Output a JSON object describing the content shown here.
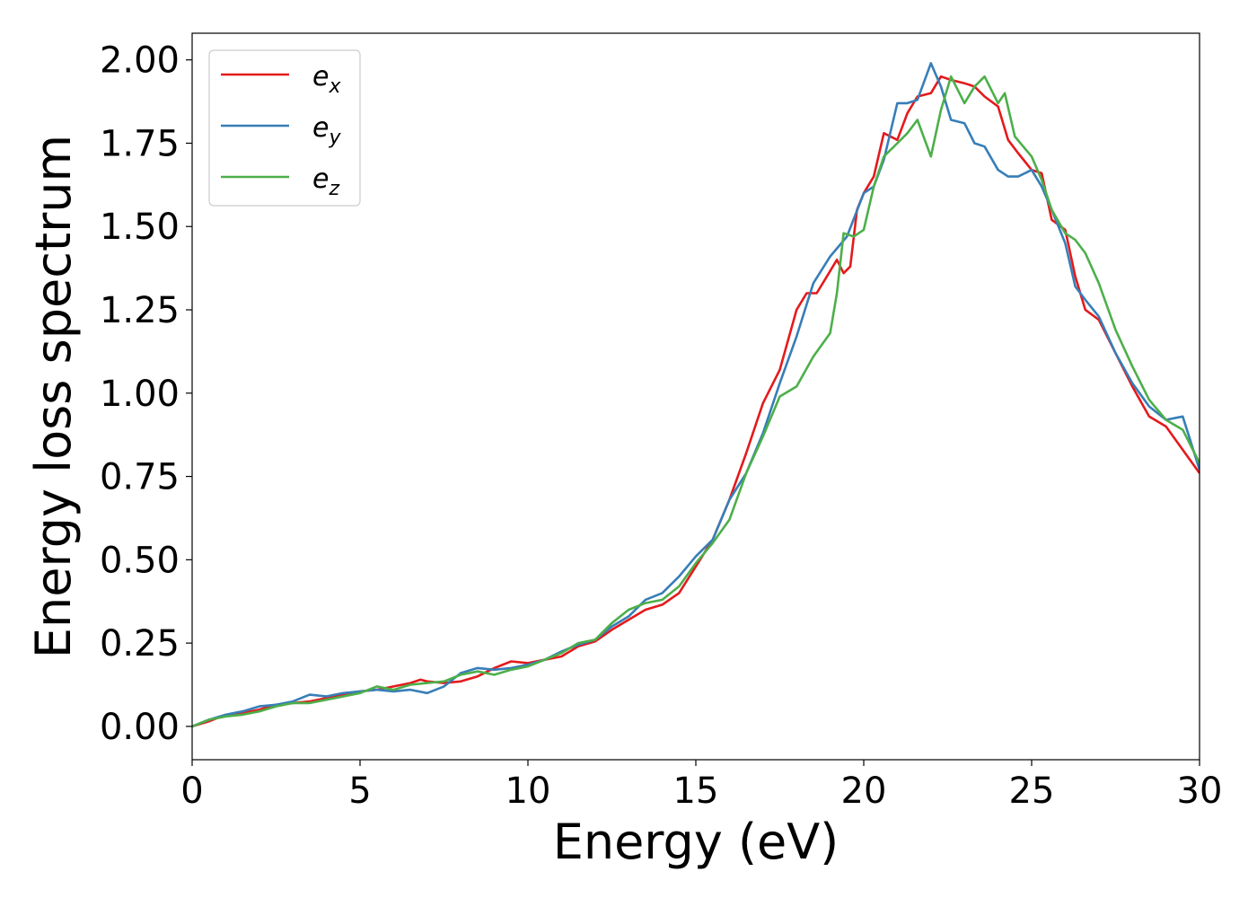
{
  "chart_data": {
    "type": "line",
    "xlabel": "Energy (eV)",
    "ylabel": "Energy loss spectrum",
    "xlim": [
      0,
      30
    ],
    "ylim": [
      -0.1,
      2.08
    ],
    "x_ticks": [
      0,
      5,
      10,
      15,
      20,
      25,
      30
    ],
    "x_tick_labels": [
      "0",
      "5",
      "10",
      "15",
      "20",
      "25",
      "30"
    ],
    "y_ticks": [
      0.0,
      0.25,
      0.5,
      0.75,
      1.0,
      1.25,
      1.5,
      1.75,
      2.0
    ],
    "y_tick_labels": [
      "0.00",
      "0.25",
      "0.50",
      "0.75",
      "1.00",
      "1.25",
      "1.50",
      "1.75",
      "2.00"
    ],
    "grid": false,
    "legend_position": "top-left",
    "series": [
      {
        "name": "e",
        "subscript": "x",
        "color": "#e41a1c",
        "x": [
          0,
          0.5,
          1.0,
          1.5,
          2.0,
          2.5,
          3.0,
          3.5,
          4.0,
          4.5,
          5.0,
          5.5,
          6.0,
          6.5,
          6.8,
          7.0,
          7.5,
          8.0,
          8.5,
          9.0,
          9.5,
          10.0,
          10.5,
          11.0,
          11.5,
          12.0,
          12.5,
          13.0,
          13.5,
          14.0,
          14.5,
          15.0,
          15.5,
          16.0,
          16.5,
          17.0,
          17.5,
          18.0,
          18.3,
          18.6,
          18.9,
          19.2,
          19.4,
          19.6,
          19.8,
          20.0,
          20.3,
          20.6,
          21.0,
          21.3,
          21.6,
          22.0,
          22.3,
          22.6,
          23.0,
          23.3,
          23.6,
          24.0,
          24.3,
          24.6,
          25.0,
          25.3,
          25.6,
          26.0,
          26.3,
          26.6,
          27.0,
          27.5,
          28.0,
          28.5,
          29.0,
          29.5,
          30.0
        ],
        "y": [
          0.0,
          0.015,
          0.035,
          0.04,
          0.05,
          0.065,
          0.07,
          0.075,
          0.085,
          0.095,
          0.105,
          0.11,
          0.12,
          0.13,
          0.14,
          0.135,
          0.13,
          0.135,
          0.15,
          0.175,
          0.195,
          0.19,
          0.2,
          0.21,
          0.24,
          0.255,
          0.29,
          0.32,
          0.35,
          0.365,
          0.4,
          0.48,
          0.56,
          0.68,
          0.82,
          0.97,
          1.07,
          1.25,
          1.3,
          1.3,
          1.35,
          1.4,
          1.36,
          1.38,
          1.55,
          1.6,
          1.65,
          1.78,
          1.76,
          1.84,
          1.89,
          1.9,
          1.95,
          1.94,
          1.93,
          1.92,
          1.89,
          1.86,
          1.76,
          1.72,
          1.67,
          1.66,
          1.52,
          1.49,
          1.35,
          1.25,
          1.22,
          1.12,
          1.02,
          0.93,
          0.9,
          0.83,
          0.76
        ]
      },
      {
        "name": "e",
        "subscript": "y",
        "color": "#377eb8",
        "x": [
          0,
          0.5,
          1.0,
          1.5,
          2.0,
          2.5,
          3.0,
          3.5,
          4.0,
          4.5,
          5.0,
          5.5,
          6.0,
          6.5,
          7.0,
          7.5,
          8.0,
          8.5,
          9.0,
          9.5,
          10.0,
          10.5,
          11.0,
          11.5,
          12.0,
          12.5,
          13.0,
          13.5,
          14.0,
          14.5,
          15.0,
          15.5,
          16.0,
          16.5,
          17.0,
          17.5,
          18.0,
          18.5,
          19.0,
          19.5,
          20.0,
          20.3,
          20.6,
          21.0,
          21.3,
          21.6,
          22.0,
          22.3,
          22.6,
          23.0,
          23.3,
          23.6,
          24.0,
          24.3,
          24.6,
          25.0,
          25.3,
          25.6,
          26.0,
          26.3,
          26.6,
          27.0,
          27.5,
          28.0,
          28.5,
          29.0,
          29.5,
          30.0
        ],
        "y": [
          0.0,
          0.02,
          0.035,
          0.045,
          0.06,
          0.065,
          0.075,
          0.095,
          0.09,
          0.1,
          0.105,
          0.11,
          0.105,
          0.11,
          0.1,
          0.12,
          0.16,
          0.175,
          0.17,
          0.175,
          0.185,
          0.2,
          0.225,
          0.245,
          0.26,
          0.3,
          0.33,
          0.38,
          0.4,
          0.45,
          0.51,
          0.56,
          0.68,
          0.76,
          0.88,
          1.03,
          1.17,
          1.33,
          1.41,
          1.47,
          1.6,
          1.62,
          1.7,
          1.87,
          1.87,
          1.88,
          1.99,
          1.92,
          1.82,
          1.81,
          1.75,
          1.74,
          1.67,
          1.65,
          1.65,
          1.67,
          1.62,
          1.55,
          1.45,
          1.32,
          1.28,
          1.23,
          1.12,
          1.03,
          0.96,
          0.92,
          0.93,
          0.77
        ]
      },
      {
        "name": "e",
        "subscript": "z",
        "color": "#4daf4a",
        "x": [
          0,
          0.5,
          1.0,
          1.5,
          2.0,
          2.5,
          3.0,
          3.5,
          4.0,
          4.5,
          5.0,
          5.5,
          6.0,
          6.5,
          7.0,
          7.5,
          8.0,
          8.5,
          9.0,
          9.5,
          10.0,
          10.5,
          11.0,
          11.5,
          12.0,
          12.5,
          13.0,
          13.5,
          14.0,
          14.5,
          15.0,
          15.5,
          16.0,
          16.5,
          17.0,
          17.5,
          18.0,
          18.5,
          19.0,
          19.2,
          19.4,
          19.7,
          20.0,
          20.3,
          20.6,
          21.0,
          21.3,
          21.6,
          22.0,
          22.3,
          22.6,
          23.0,
          23.3,
          23.6,
          24.0,
          24.2,
          24.5,
          25.0,
          25.3,
          25.6,
          26.0,
          26.3,
          26.6,
          27.0,
          27.5,
          28.0,
          28.5,
          29.0,
          29.5,
          30.0
        ],
        "y": [
          0.0,
          0.02,
          0.03,
          0.035,
          0.045,
          0.06,
          0.07,
          0.07,
          0.08,
          0.09,
          0.1,
          0.12,
          0.11,
          0.125,
          0.13,
          0.135,
          0.155,
          0.165,
          0.155,
          0.17,
          0.18,
          0.2,
          0.22,
          0.25,
          0.26,
          0.31,
          0.35,
          0.37,
          0.38,
          0.42,
          0.49,
          0.55,
          0.62,
          0.76,
          0.87,
          0.99,
          1.02,
          1.11,
          1.18,
          1.3,
          1.48,
          1.47,
          1.49,
          1.62,
          1.71,
          1.75,
          1.78,
          1.82,
          1.71,
          1.85,
          1.95,
          1.87,
          1.92,
          1.95,
          1.87,
          1.9,
          1.77,
          1.71,
          1.64,
          1.55,
          1.48,
          1.46,
          1.42,
          1.33,
          1.19,
          1.08,
          0.98,
          0.92,
          0.89,
          0.79
        ]
      }
    ]
  }
}
